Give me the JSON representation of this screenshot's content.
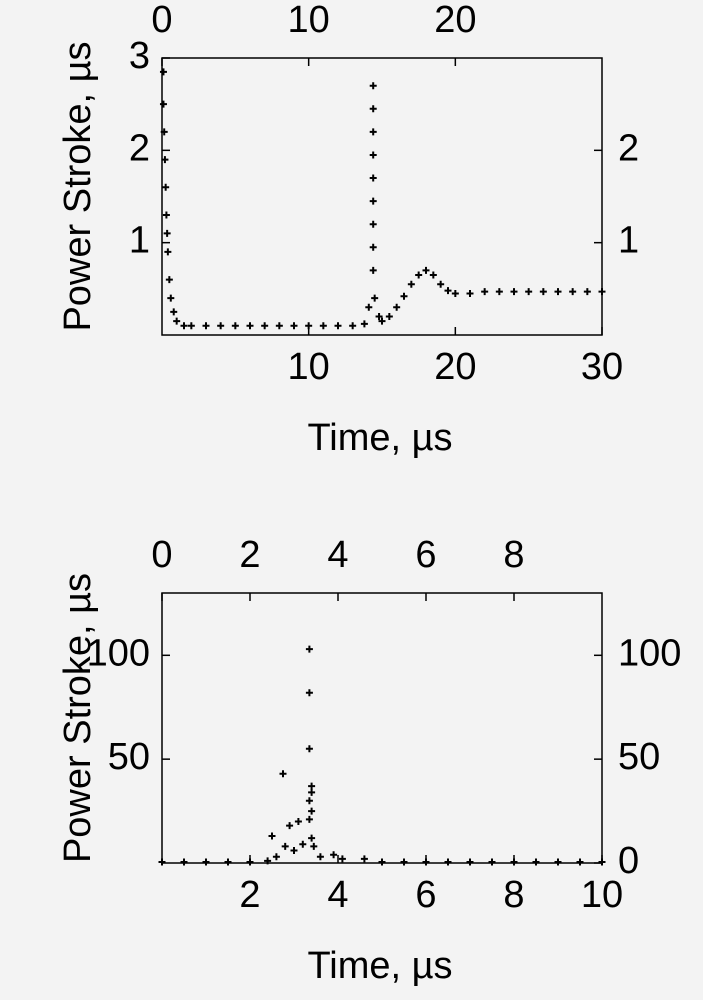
{
  "chart_data": [
    {
      "type": "scatter",
      "xlabel": "Time, µs",
      "ylabel": "Power Stroke, µs",
      "xlim": [
        0,
        30
      ],
      "xticks": [
        10,
        20,
        30
      ],
      "x2lim": [
        0,
        30
      ],
      "x2ticks": [
        0,
        10,
        20
      ],
      "ylim": [
        0,
        3
      ],
      "yticks": [
        1,
        2,
        3
      ],
      "y2lim": [
        0,
        3
      ],
      "y2ticks": [
        1,
        2
      ],
      "series": [
        {
          "color": "#000000",
          "x": [
            0.1,
            0.1,
            0.15,
            0.2,
            0.25,
            0.3,
            0.35,
            0.4,
            0.5,
            0.6,
            0.8,
            1,
            1.5,
            2,
            3,
            4,
            5,
            6,
            7,
            8,
            9,
            10,
            11,
            12,
            13,
            13.8,
            14.1,
            14.4,
            14.4,
            14.4,
            14.4,
            14.4,
            14.4,
            14.4,
            14.4,
            14.4,
            14.5,
            14.8,
            15,
            15.5,
            16,
            16.5,
            17,
            17.5,
            18,
            18.5,
            19,
            19.5,
            20,
            21,
            22,
            23,
            24,
            25,
            26,
            27,
            28,
            29,
            30
          ],
          "values": [
            2.85,
            2.5,
            2.2,
            1.9,
            1.6,
            1.3,
            1.1,
            0.9,
            0.6,
            0.4,
            0.25,
            0.15,
            0.1,
            0.1,
            0.1,
            0.1,
            0.1,
            0.1,
            0.1,
            0.1,
            0.1,
            0.1,
            0.1,
            0.1,
            0.1,
            0.12,
            0.3,
            2.7,
            2.45,
            2.2,
            1.95,
            1.7,
            1.45,
            1.2,
            0.95,
            0.7,
            0.4,
            0.2,
            0.15,
            0.2,
            0.3,
            0.42,
            0.55,
            0.65,
            0.7,
            0.65,
            0.55,
            0.48,
            0.45,
            0.45,
            0.47,
            0.47,
            0.47,
            0.47,
            0.47,
            0.47,
            0.47,
            0.47,
            0.47
          ]
        }
      ]
    },
    {
      "type": "scatter",
      "xlabel": "Time, µs",
      "ylabel": "Power Stroke, µs",
      "xlim": [
        0,
        10
      ],
      "xticks": [
        2,
        4,
        6,
        8,
        10
      ],
      "x2lim": [
        0,
        10
      ],
      "x2ticks": [
        0,
        2,
        4,
        6,
        8
      ],
      "ylim": [
        0,
        130
      ],
      "yticks": [
        50,
        100
      ],
      "y2lim": [
        0,
        130
      ],
      "y2ticks": [
        0,
        50,
        100
      ],
      "series": [
        {
          "color": "#000000",
          "x": [
            0,
            0.5,
            1,
            1.5,
            2,
            2.4,
            2.5,
            2.6,
            2.75,
            2.8,
            2.9,
            3.0,
            3.1,
            3.2,
            3.35,
            3.35,
            3.35,
            3.4,
            3.4,
            3.35,
            3.4,
            3.35,
            3.4,
            3.45,
            3.6,
            3.9,
            4.1,
            4.6,
            5,
            5.5,
            6,
            6.5,
            7,
            7.5,
            8,
            8.5,
            9,
            9.5,
            10
          ],
          "values": [
            0.5,
            0.5,
            0.5,
            0.5,
            0.5,
            1,
            13,
            3,
            43,
            8,
            18,
            6,
            20,
            9,
            103,
            82,
            55,
            37,
            34,
            30,
            25,
            21,
            12,
            8,
            3,
            4,
            2,
            2,
            0.5,
            0.5,
            0.5,
            0.5,
            0.5,
            0.5,
            0.5,
            0.5,
            0.5,
            0.5,
            0.5
          ]
        }
      ]
    }
  ]
}
